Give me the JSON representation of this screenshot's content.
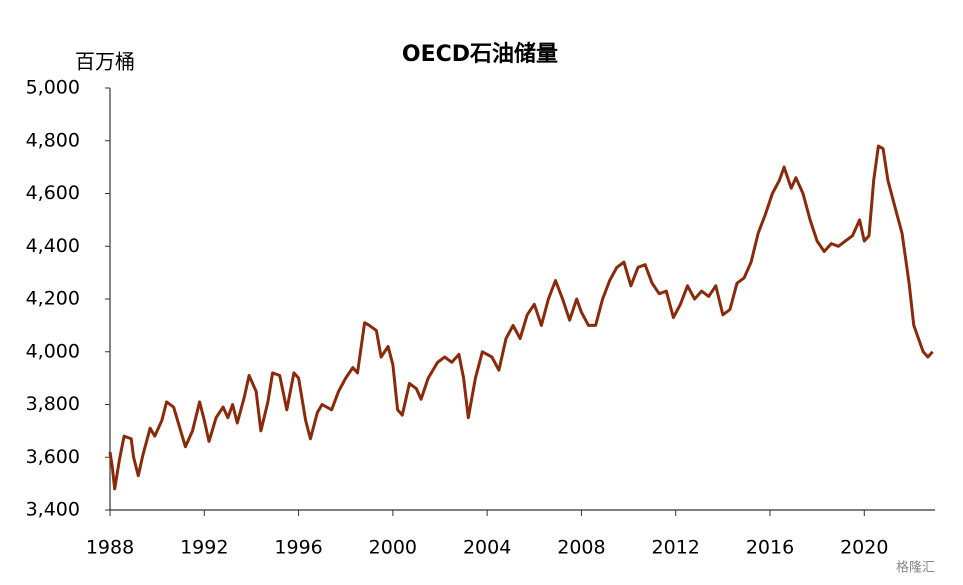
{
  "chart_data": {
    "type": "line",
    "title": "OECD石油储量",
    "y_label": "百万桶",
    "watermark": "格隆汇",
    "x": [
      1988.0,
      1988.1,
      1988.2,
      1988.4,
      1988.6,
      1988.9,
      1989.0,
      1989.2,
      1989.4,
      1989.7,
      1989.9,
      1990.2,
      1990.4,
      1990.7,
      1991.0,
      1991.2,
      1991.5,
      1991.8,
      1992.0,
      1992.2,
      1992.5,
      1992.8,
      1993.0,
      1993.2,
      1993.4,
      1993.7,
      1993.9,
      1994.2,
      1994.4,
      1994.7,
      1994.9,
      1995.2,
      1995.5,
      1995.8,
      1996.0,
      1996.3,
      1996.5,
      1996.8,
      1997.0,
      1997.4,
      1997.7,
      1998.0,
      1998.3,
      1998.5,
      1998.8,
      1999.0,
      1999.3,
      1999.5,
      1999.8,
      2000.0,
      2000.2,
      2000.4,
      2000.7,
      2001.0,
      2001.2,
      2001.5,
      2001.9,
      2002.2,
      2002.5,
      2002.8,
      2003.0,
      2003.2,
      2003.5,
      2003.8,
      2004.2,
      2004.5,
      2004.8,
      2005.1,
      2005.4,
      2005.7,
      2006.0,
      2006.3,
      2006.6,
      2006.9,
      2007.2,
      2007.5,
      2007.8,
      2008.0,
      2008.3,
      2008.6,
      2008.9,
      2009.2,
      2009.5,
      2009.8,
      2010.1,
      2010.4,
      2010.7,
      2011.0,
      2011.3,
      2011.6,
      2011.9,
      2012.2,
      2012.5,
      2012.8,
      2013.1,
      2013.4,
      2013.7,
      2014.0,
      2014.3,
      2014.6,
      2014.9,
      2015.2,
      2015.5,
      2015.8,
      2016.1,
      2016.4,
      2016.6,
      2016.9,
      2017.1,
      2017.4,
      2017.7,
      2018.0,
      2018.3,
      2018.6,
      2018.9,
      2019.2,
      2019.5,
      2019.8,
      2020.0,
      2020.2,
      2020.4,
      2020.6,
      2020.8,
      2021.0,
      2021.3,
      2021.6,
      2021.9,
      2022.1,
      2022.3,
      2022.5,
      2022.7,
      2022.9
    ],
    "series": [
      {
        "name": "OECD石油储量",
        "color": "#8b2a0a",
        "values": [
          3620,
          3560,
          3480,
          3590,
          3680,
          3670,
          3600,
          3530,
          3610,
          3710,
          3680,
          3740,
          3810,
          3790,
          3700,
          3640,
          3700,
          3810,
          3740,
          3660,
          3750,
          3790,
          3750,
          3800,
          3730,
          3830,
          3910,
          3850,
          3700,
          3810,
          3920,
          3910,
          3780,
          3920,
          3900,
          3740,
          3670,
          3770,
          3800,
          3780,
          3850,
          3900,
          3940,
          3920,
          4110,
          4100,
          4080,
          3980,
          4020,
          3950,
          3780,
          3760,
          3880,
          3860,
          3820,
          3900,
          3960,
          3980,
          3960,
          3990,
          3900,
          3750,
          3900,
          4000,
          3980,
          3930,
          4050,
          4100,
          4050,
          4140,
          4180,
          4100,
          4200,
          4270,
          4200,
          4120,
          4200,
          4150,
          4100,
          4100,
          4200,
          4270,
          4320,
          4340,
          4250,
          4320,
          4330,
          4260,
          4220,
          4230,
          4130,
          4180,
          4250,
          4200,
          4230,
          4210,
          4250,
          4140,
          4160,
          4260,
          4280,
          4340,
          4450,
          4520,
          4600,
          4650,
          4700,
          4620,
          4660,
          4600,
          4500,
          4420,
          4380,
          4410,
          4400,
          4420,
          4440,
          4500,
          4420,
          4440,
          4650,
          4780,
          4770,
          4650,
          4550,
          4450,
          4260,
          4100,
          4050,
          4000,
          3980,
          4000
        ]
      }
    ],
    "xlim": [
      1988,
      2023
    ],
    "xticks": [
      1988,
      1992,
      1996,
      2000,
      2004,
      2008,
      2012,
      2016,
      2020
    ],
    "ylim": [
      3400,
      5000
    ],
    "yticks": [
      {
        "value": 3400,
        "label": "3,400"
      },
      {
        "value": 3600,
        "label": "3,600"
      },
      {
        "value": 3800,
        "label": "3,800"
      },
      {
        "value": 4000,
        "label": "4,000"
      },
      {
        "value": 4200,
        "label": "4,200"
      },
      {
        "value": 4400,
        "label": "4,400"
      },
      {
        "value": 4600,
        "label": "4,600"
      },
      {
        "value": 4800,
        "label": "4,800"
      },
      {
        "value": 5000,
        "label": "5,000"
      }
    ],
    "grid": false
  }
}
